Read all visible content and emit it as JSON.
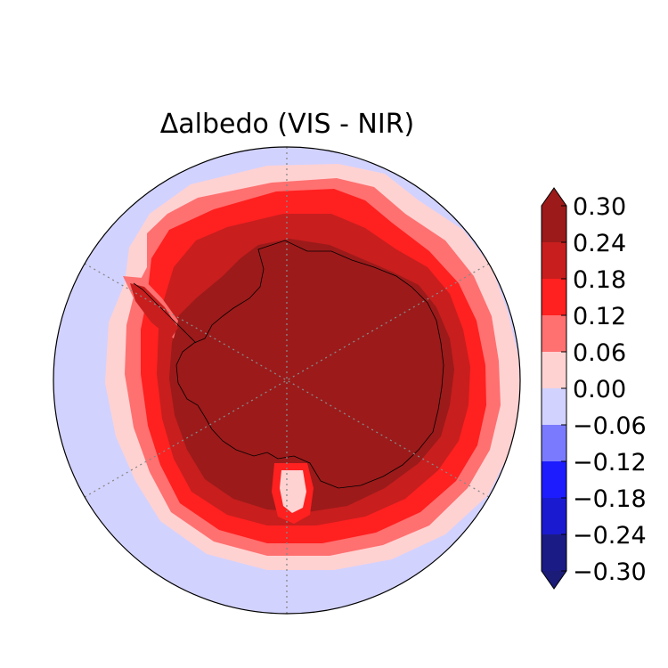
{
  "title": "Δalbedo (VIS - NIR)",
  "projection": "south-polar-stereographic",
  "graticule": {
    "style": "dotted",
    "color": "#888888"
  },
  "colorbar": {
    "extend": "both",
    "levels": [
      0.3,
      0.24,
      0.18,
      0.12,
      0.06,
      0.0,
      -0.06,
      -0.12,
      -0.18,
      -0.24,
      -0.3
    ],
    "tick_labels": [
      "0.30",
      "0.24",
      "0.18",
      "0.12",
      "0.06",
      "0.00",
      "−0.06",
      "−0.12",
      "−0.18",
      "−0.24",
      "−0.30"
    ],
    "colors": [
      "#9c1a1a",
      "#c81e1e",
      "#ff2020",
      "#ff7070",
      "#ffd2d2",
      "#d2d2ff",
      "#7a7aff",
      "#1c1cff",
      "#1a1ad0",
      "#1b1b86"
    ],
    "over_color": "#9c1a1a",
    "under_color": "#1b1b78"
  },
  "legend": {
    "field_colors": {
      "ocean_far": "#d2d2ff",
      "band_0_06": "#ffd2d2",
      "band_0_12": "#ff7070",
      "band_0_18": "#ff2020",
      "band_0_24": "#c81e1e",
      "band_0_30": "#9c1a1a"
    }
  }
}
